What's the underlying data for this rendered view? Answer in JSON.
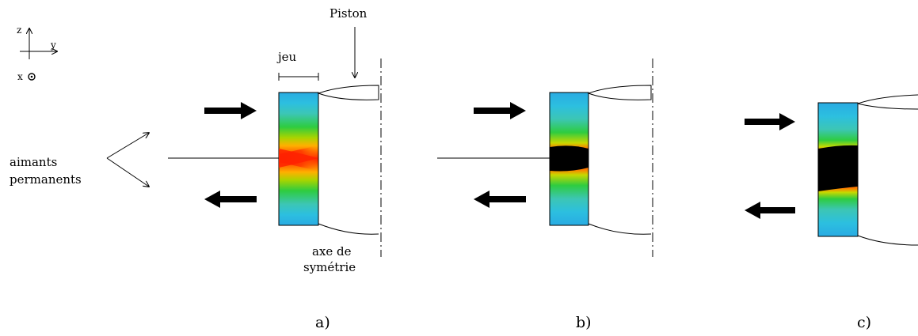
{
  "axes": {
    "z": "z",
    "y": "y",
    "x": "x"
  },
  "labels": {
    "piston": "Piston",
    "jeu": "jeu",
    "magnets_line1": "aimants",
    "magnets_line2": "permanents",
    "axis_line1": "axe de",
    "axis_line2": "symétrie"
  },
  "panels": [
    {
      "id": "a",
      "caption": "a)",
      "core": "red"
    },
    {
      "id": "b",
      "caption": "b)",
      "core": "black"
    },
    {
      "id": "c",
      "caption": "c)",
      "core": "black"
    }
  ],
  "colors": {
    "magnet_edge": "#29abe2",
    "outer_field": "#3cc6b4",
    "mid_field": "#2ecc40",
    "inner_field": "#c8d800",
    "hot_field": "#ff7a00",
    "core_red": "#ff2200",
    "core_black": "#000000"
  }
}
